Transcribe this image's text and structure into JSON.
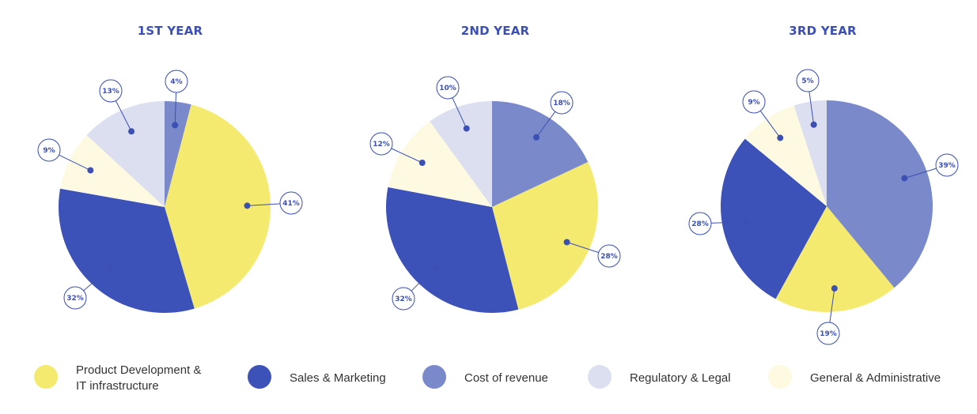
{
  "legend": [
    {
      "label_lines": [
        "Product Development &",
        "IT infrastructure"
      ],
      "color": "#f5ea70"
    },
    {
      "label_lines": [
        "Sales & Marketing"
      ],
      "color": "#3d52b8"
    },
    {
      "label_lines": [
        "Cost of revenue"
      ],
      "color": "#7a89c9"
    },
    {
      "label_lines": [
        "Regulatory & Legal"
      ],
      "color": "#dcdff0"
    },
    {
      "label_lines": [
        "General & Administrative"
      ],
      "color": "#fdfae1"
    }
  ],
  "chart_data": [
    {
      "type": "pie",
      "title": "1ST YEAR",
      "slices": [
        {
          "category": "Cost of revenue",
          "value": 4,
          "label": "4%"
        },
        {
          "category": "Product Development & IT infrastructure",
          "value": 41,
          "label": "41%"
        },
        {
          "category": "Sales & Marketing",
          "value": 32,
          "label": "32%"
        },
        {
          "category": "General & Administrative",
          "value": 9,
          "label": "9%"
        },
        {
          "category": "Regulatory & Legal",
          "value": 13,
          "label": "13%"
        }
      ]
    },
    {
      "type": "pie",
      "title": "2ND YEAR",
      "slices": [
        {
          "category": "Cost of revenue",
          "value": 18,
          "label": "18%"
        },
        {
          "category": "Product Development & IT infrastructure",
          "value": 28,
          "label": "28%"
        },
        {
          "category": "Sales & Marketing",
          "value": 32,
          "label": "32%"
        },
        {
          "category": "General & Administrative",
          "value": 12,
          "label": "12%"
        },
        {
          "category": "Regulatory & Legal",
          "value": 10,
          "label": "10%"
        }
      ]
    },
    {
      "type": "pie",
      "title": "3RD YEAR",
      "slices": [
        {
          "category": "Cost of revenue",
          "value": 39,
          "label": "39%"
        },
        {
          "category": "Product Development & IT infrastructure",
          "value": 19,
          "label": "19%"
        },
        {
          "category": "Sales & Marketing",
          "value": 28,
          "label": "28%"
        },
        {
          "category": "General & Administrative",
          "value": 9,
          "label": "9%"
        },
        {
          "category": "Regulatory & Legal",
          "value": 5,
          "label": "5%"
        }
      ]
    }
  ]
}
